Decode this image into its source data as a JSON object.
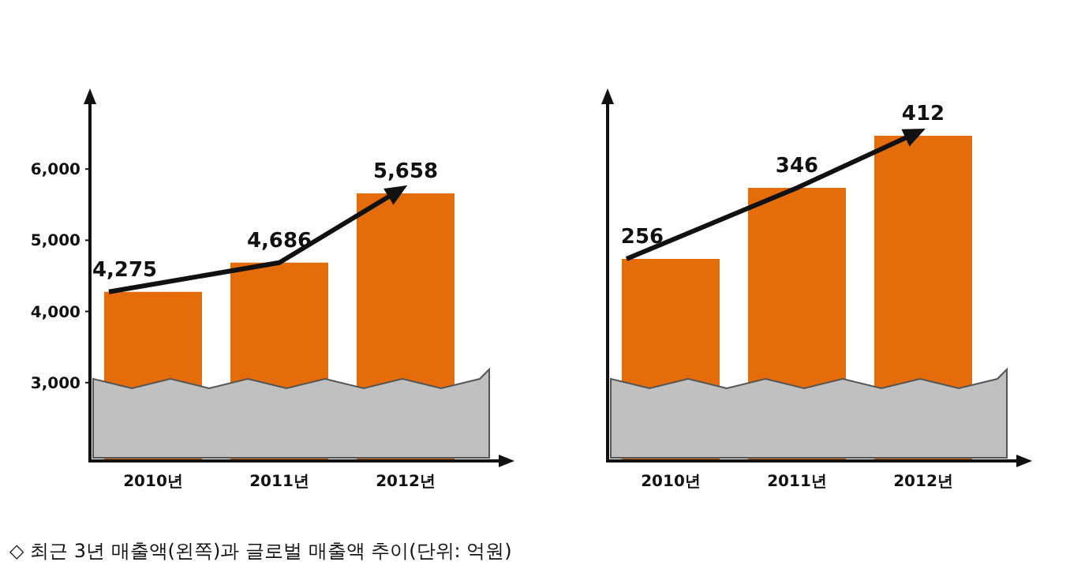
{
  "chart_data": [
    {
      "type": "bar",
      "categories": [
        "2010년",
        "2011년",
        "2012년"
      ],
      "values": [
        4275,
        4686,
        5658
      ],
      "value_labels": [
        "4,275",
        "4,686",
        "5,658"
      ],
      "color": "#e46c0a",
      "ylim": [
        1900,
        7000
      ],
      "yticks": [
        {
          "value": 3000,
          "label": "3,000"
        },
        {
          "value": 4000,
          "label": "4,000"
        },
        {
          "value": 5000,
          "label": "5,000"
        },
        {
          "value": 6000,
          "label": "6,000"
        }
      ],
      "annotations": [
        "◇ 최근 3년 매출액(왼쪽)과 글로벌 매출액 추이(단위: 억원)"
      ]
    },
    {
      "type": "bar",
      "categories": [
        "2010년",
        "2011년",
        "2012년"
      ],
      "values": [
        256,
        346,
        412
      ],
      "value_labels": [
        "256",
        "346",
        "412"
      ],
      "color": "#e46c0a",
      "ylim": [
        0,
        460
      ],
      "tick_labels": "x"
    }
  ]
}
